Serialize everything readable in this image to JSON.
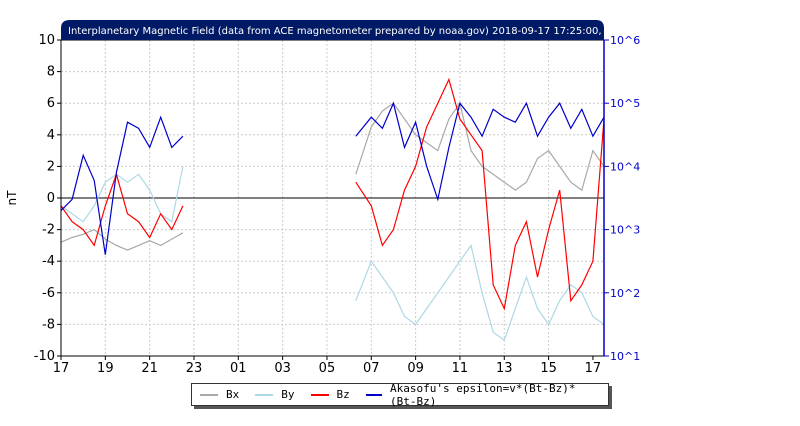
{
  "chart_data": {
    "type": "line",
    "title": "Interplanetary Magnetic Field (data from ACE magnetometer prepared by noaa.gov) 2018-09-17 17:25:00, UTC",
    "ylabel": "nT",
    "ylim": [
      -10,
      10
    ],
    "yticks": [
      "10",
      "8",
      "6",
      "4",
      "2",
      "0",
      "-2",
      "-4",
      "-6",
      "-8",
      "-10"
    ],
    "xticks": [
      "17",
      "19",
      "21",
      "23",
      "01",
      "03",
      "05",
      "07",
      "09",
      "11",
      "13",
      "15",
      "17"
    ],
    "right_axis": {
      "scale": "log",
      "ticks": [
        "10^6",
        "10^5",
        "10^4",
        "10^3",
        "10^2",
        "10^1"
      ],
      "color": "#0000cc"
    },
    "grid": true,
    "legend_position": "bottom",
    "data_gap": [
      22.6,
      30.3
    ],
    "series": [
      {
        "name": "Bx",
        "color": "#a9a9a9",
        "x": [
          17.0,
          17.5,
          18.0,
          18.5,
          19.0,
          19.5,
          20.0,
          20.5,
          21.0,
          21.5,
          22.0,
          22.5,
          30.3,
          31.0,
          31.5,
          32.0,
          32.5,
          33.0,
          33.5,
          34.0,
          34.5,
          35.0,
          35.5,
          36.0,
          36.5,
          37.0,
          37.5,
          38.0,
          38.5,
          39.0,
          39.5,
          40.0,
          40.5,
          41.0,
          41.5
        ],
        "values": [
          -2.8,
          -2.5,
          -2.3,
          -2.0,
          -2.6,
          -3.0,
          -3.3,
          -3.0,
          -2.7,
          -3.0,
          -2.6,
          -2.2,
          1.5,
          4.5,
          5.5,
          6.0,
          5.0,
          4.0,
          3.5,
          3.0,
          5.0,
          6.0,
          3.0,
          2.0,
          1.5,
          1.0,
          0.5,
          1.0,
          2.5,
          3.0,
          2.0,
          1.0,
          0.5,
          3.0,
          2.0
        ]
      },
      {
        "name": "By",
        "color": "#add8e6",
        "x": [
          17.0,
          17.5,
          18.0,
          18.5,
          19.0,
          19.5,
          20.0,
          20.5,
          21.0,
          21.5,
          22.0,
          22.5,
          30.3,
          31.0,
          31.5,
          32.0,
          32.5,
          33.0,
          33.5,
          34.0,
          34.5,
          35.0,
          35.5,
          36.0,
          36.5,
          37.0,
          37.5,
          38.0,
          38.5,
          39.0,
          39.5,
          40.0,
          40.5,
          41.0,
          41.5
        ],
        "values": [
          -0.5,
          -1.0,
          -1.5,
          -0.5,
          1.0,
          1.5,
          1.0,
          1.5,
          0.5,
          -1.0,
          -1.5,
          2.0,
          -6.5,
          -4.0,
          -5.0,
          -6.0,
          -7.5,
          -8.0,
          -7.0,
          -6.0,
          -5.0,
          -4.0,
          -3.0,
          -6.0,
          -8.5,
          -9.0,
          -7.0,
          -5.0,
          -7.0,
          -8.0,
          -6.5,
          -5.5,
          -6.0,
          -7.5,
          -8.0
        ]
      },
      {
        "name": "Bz",
        "color": "#ff0000",
        "x": [
          17.0,
          17.5,
          18.0,
          18.5,
          19.0,
          19.5,
          20.0,
          20.5,
          21.0,
          21.5,
          22.0,
          22.5,
          30.3,
          31.0,
          31.5,
          32.0,
          32.5,
          33.0,
          33.5,
          34.0,
          34.5,
          35.0,
          35.5,
          36.0,
          36.5,
          37.0,
          37.5,
          38.0,
          38.5,
          39.0,
          39.5,
          40.0,
          40.5,
          41.0,
          41.5
        ],
        "values": [
          -0.5,
          -1.5,
          -2.0,
          -3.0,
          -0.5,
          1.5,
          -1.0,
          -1.5,
          -2.5,
          -1.0,
          -2.0,
          -0.5,
          1.0,
          -0.5,
          -3.0,
          -2.0,
          0.5,
          2.0,
          4.5,
          6.0,
          7.5,
          5.0,
          4.0,
          3.0,
          -5.5,
          -7.0,
          -3.0,
          -1.5,
          -5.0,
          -2.0,
          0.5,
          -6.5,
          -5.5,
          -4.0,
          5.0
        ]
      },
      {
        "name": "Akasofu's epsilon=v*(Bt-Bz)*(Bt-Bz)",
        "color": "#0000cc",
        "x": [
          17.0,
          17.5,
          18.0,
          18.5,
          19.0,
          19.5,
          20.0,
          20.5,
          21.0,
          21.5,
          22.0,
          22.5,
          30.3,
          31.0,
          31.5,
          32.0,
          32.5,
          33.0,
          33.5,
          34.0,
          34.5,
          35.0,
          35.5,
          36.0,
          36.5,
          37.0,
          37.5,
          38.0,
          38.5,
          39.0,
          39.5,
          40.0,
          40.5,
          41.0,
          41.5
        ],
        "values": [
          2000,
          3000,
          15000,
          6000,
          400,
          8000,
          50000,
          40000,
          20000,
          60000,
          20000,
          30000,
          30000,
          60000,
          40000,
          100000,
          20000,
          50000,
          10000,
          3000,
          20000,
          100000,
          60000,
          30000,
          80000,
          60000,
          50000,
          100000,
          30000,
          60000,
          100000,
          40000,
          80000,
          30000,
          60000
        ]
      }
    ]
  },
  "legend": {
    "bx": "Bx",
    "by": "By",
    "bz": "Bz",
    "eps": "Akasofu's epsilon=v*(Bt-Bz)*(Bt-Bz)"
  }
}
